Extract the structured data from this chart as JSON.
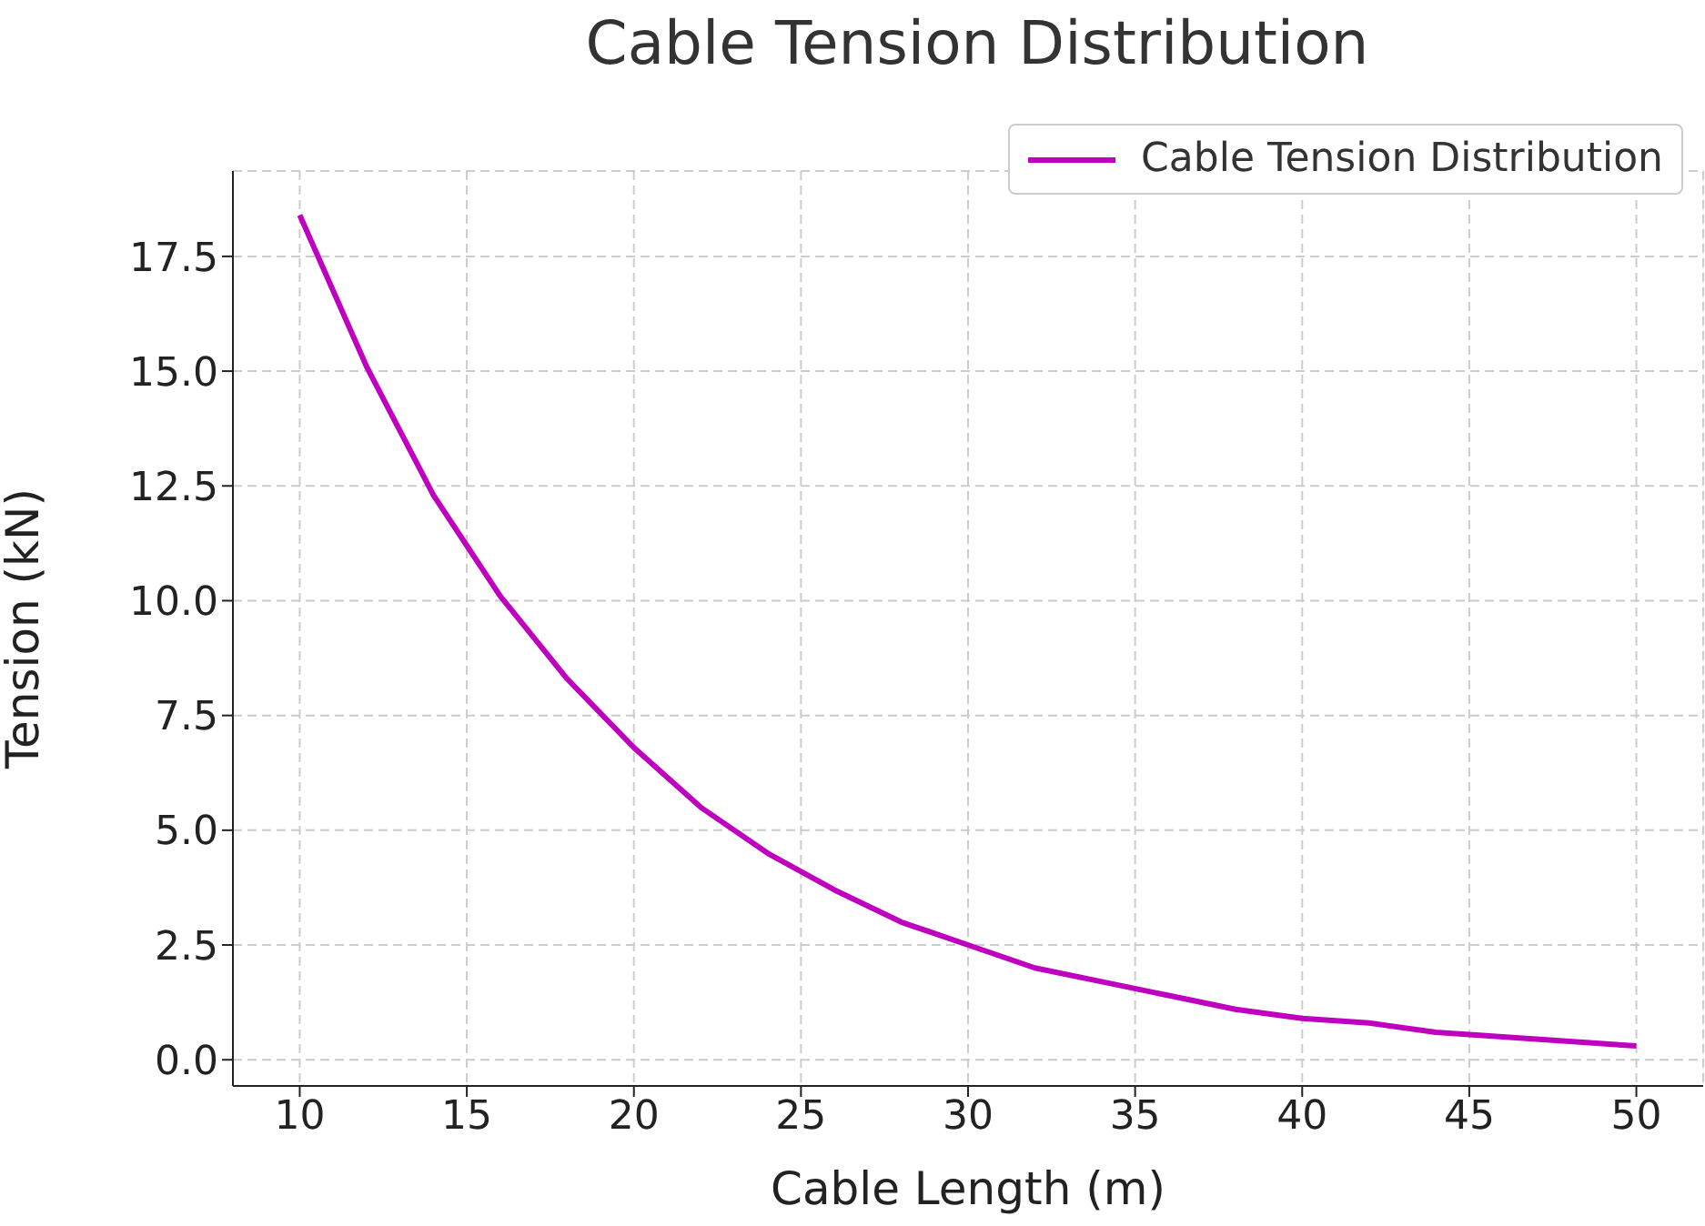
{
  "chart_data": {
    "type": "line",
    "title": "Cable Tension Distribution",
    "xlabel": "Cable Length (m)",
    "ylabel": "Tension (kN)",
    "x": [
      10,
      12,
      14,
      16,
      18,
      20,
      22,
      24,
      26,
      28,
      30,
      32,
      34,
      36,
      38,
      40,
      42,
      44,
      46,
      48,
      50
    ],
    "series": [
      {
        "name": "Cable Tension Distribution",
        "color": "#bf00bf",
        "values": [
          18.4,
          15.1,
          12.3,
          10.1,
          8.3,
          6.8,
          5.5,
          4.5,
          3.7,
          3.0,
          2.5,
          2.0,
          1.7,
          1.4,
          1.1,
          0.9,
          0.8,
          0.6,
          0.5,
          0.4,
          0.3
        ]
      }
    ],
    "xlim": [
      8,
      52
    ],
    "ylim": [
      -0.57,
      19.36
    ],
    "xticks": [
      10,
      15,
      20,
      25,
      30,
      35,
      40,
      45,
      50
    ],
    "yticks": [
      {
        "value": 0,
        "label": "0.0"
      },
      {
        "value": 2.5,
        "label": "2.5"
      },
      {
        "value": 5,
        "label": "5.0"
      },
      {
        "value": 7.5,
        "label": "7.5"
      },
      {
        "value": 10,
        "label": "10.0"
      },
      {
        "value": 12.5,
        "label": "12.5"
      },
      {
        "value": 15,
        "label": "15.0"
      },
      {
        "value": 17.5,
        "label": "17.5"
      }
    ],
    "grid": true,
    "legend": "top right",
    "marker": "none",
    "line_style": "solid"
  }
}
